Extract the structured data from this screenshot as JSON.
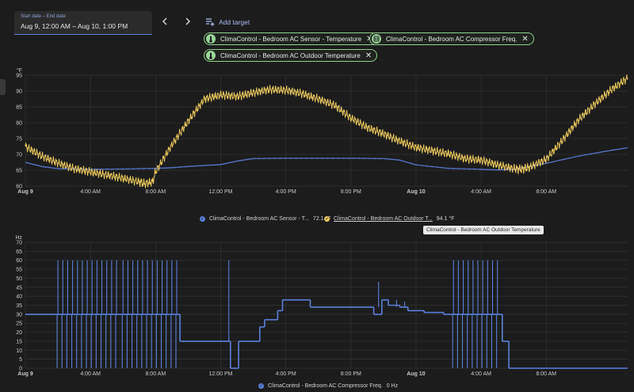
{
  "date_picker": {
    "label": "Start date – End date",
    "value": "Aug 9, 12:00 AM – Aug 10, 1:00 PM"
  },
  "nav": {
    "prev_icon": "chevron-left-icon",
    "next_icon": "chevron-right-icon"
  },
  "add_target": {
    "label": "Add target",
    "icon": "playlist-add-icon"
  },
  "targets": [
    {
      "label": "ClimaControl - Bedroom AC Sensor - Temperature",
      "icon": "thermometer-icon"
    },
    {
      "label": "ClimaControl - Bedroom AC Compressor Freq.",
      "icon": "fan-icon"
    },
    {
      "label": "ClimaControl - Bedroom AC Outdoor Temperature",
      "icon": "thermometer-icon"
    }
  ],
  "colors": {
    "sensor": "#5b7fd9",
    "outdoor": "#e8c65c",
    "compressor": "#5b7fd9",
    "chip_border": "#8fd08a"
  },
  "tooltip": "ClimaControl - Bedroom AC Outdoor Temperature",
  "chart_data": [
    {
      "type": "line",
      "ylabel": "°F",
      "ylim": [
        60,
        95
      ],
      "yticks": [
        60,
        65,
        70,
        75,
        80,
        85,
        90,
        95
      ],
      "xlim": [
        0,
        37
      ],
      "xticks": [
        {
          "t": 0,
          "label": "Aug 9",
          "bold": true
        },
        {
          "t": 4,
          "label": "4:00 AM"
        },
        {
          "t": 8,
          "label": "8:00 AM"
        },
        {
          "t": 12,
          "label": "12:00 PM"
        },
        {
          "t": 16,
          "label": "4:00 PM"
        },
        {
          "t": 20,
          "label": "8:00 PM"
        },
        {
          "t": 24,
          "label": "Aug 10",
          "bold": true
        },
        {
          "t": 28,
          "label": "4:00 AM"
        },
        {
          "t": 32,
          "label": "8:00 AM"
        }
      ],
      "series": [
        {
          "name": "ClimaControl - Bedroom AC Sensor - T...",
          "legend_value": "72.1 °F",
          "color": "#5b7fd9",
          "x": [
            0,
            1,
            2,
            4,
            6,
            8,
            9,
            10,
            11,
            12,
            13,
            14,
            16,
            18,
            20,
            22,
            23,
            24,
            26,
            28,
            29,
            30,
            31,
            32,
            34,
            36,
            37
          ],
          "y": [
            67.5,
            66.2,
            65.5,
            65.3,
            65.4,
            65.6,
            65.8,
            66.2,
            66.5,
            66.8,
            67.9,
            68.7,
            68.8,
            68.8,
            68.8,
            68.7,
            68.2,
            66.7,
            65.6,
            65.3,
            65.1,
            65.3,
            66.2,
            67.2,
            69.5,
            71.3,
            72.1
          ]
        },
        {
          "name": "ClimaControl - Bedroom AC Outdoor T...",
          "legend_value": "94.1 °F",
          "color": "#e8c65c",
          "x": [
            0,
            1,
            2,
            3,
            4,
            5,
            6,
            7,
            7.3,
            7.8,
            8,
            9,
            10,
            11,
            12,
            13,
            14,
            15,
            16,
            17,
            18,
            19,
            20,
            21,
            22,
            23,
            24,
            25,
            26,
            27,
            28,
            29,
            30,
            30.5,
            31,
            32,
            33,
            34,
            35,
            36,
            37
          ],
          "y": [
            72.5,
            69.5,
            67.3,
            65.5,
            64.5,
            63.5,
            62.5,
            61.3,
            60.8,
            61.2,
            64.5,
            73,
            80.5,
            87.5,
            88.8,
            88.3,
            89.5,
            90.5,
            90.3,
            89.2,
            87.5,
            85.5,
            81.5,
            78.5,
            76.5,
            74.2,
            72.2,
            71.2,
            70.2,
            68.7,
            68.2,
            66.7,
            65.5,
            65.3,
            66,
            68.5,
            74.5,
            81,
            86,
            90.5,
            94.1
          ]
        }
      ]
    },
    {
      "type": "line",
      "ylabel": "Hz",
      "ylim": [
        0,
        70
      ],
      "yticks": [
        0,
        5,
        10,
        15,
        20,
        25,
        30,
        35,
        40,
        45,
        50,
        55,
        60,
        65,
        70
      ],
      "xlim": [
        0,
        37
      ],
      "xticks": [
        {
          "t": 0,
          "label": "Aug 9",
          "bold": true
        },
        {
          "t": 4,
          "label": "4:00 AM"
        },
        {
          "t": 8,
          "label": "8:00 AM"
        },
        {
          "t": 12,
          "label": "12:00 PM"
        },
        {
          "t": 16,
          "label": "4:00 PM"
        },
        {
          "t": 20,
          "label": "8:00 PM"
        },
        {
          "t": 24,
          "label": "Aug 10",
          "bold": true
        },
        {
          "t": 28,
          "label": "4:00 AM"
        },
        {
          "t": 32,
          "label": "8:00 AM"
        }
      ],
      "base_segments": [
        {
          "t0": 0,
          "t1": 9.5,
          "v": 30
        },
        {
          "t0": 9.5,
          "t1": 12.6,
          "v": 15
        },
        {
          "t0": 12.6,
          "t1": 13.1,
          "v": 0
        },
        {
          "t0": 13.1,
          "t1": 14.4,
          "v": 15
        },
        {
          "t0": 14.4,
          "t1": 14.7,
          "v": 23
        },
        {
          "t0": 14.7,
          "t1": 15.5,
          "v": 27
        },
        {
          "t0": 15.5,
          "t1": 15.8,
          "v": 32
        },
        {
          "t0": 15.8,
          "t1": 17.5,
          "v": 38
        },
        {
          "t0": 17.5,
          "t1": 21.4,
          "v": 34
        },
        {
          "t0": 21.4,
          "t1": 21.9,
          "v": 30
        },
        {
          "t0": 21.9,
          "t1": 22.3,
          "v": 38
        },
        {
          "t0": 22.3,
          "t1": 23,
          "v": 35
        },
        {
          "t0": 23,
          "t1": 23.5,
          "v": 34
        },
        {
          "t0": 23.5,
          "t1": 24.5,
          "v": 32
        },
        {
          "t0": 24.5,
          "t1": 25.7,
          "v": 31
        },
        {
          "t0": 25.7,
          "t1": 29.3,
          "v": 30
        },
        {
          "t0": 29.3,
          "t1": 29.7,
          "v": 15
        },
        {
          "t0": 29.7,
          "t1": 37,
          "v": 0
        }
      ],
      "spikes_60": [
        2.0,
        2.3,
        2.6,
        2.9,
        3.2,
        3.5,
        3.8,
        4.1,
        4.4,
        4.7,
        5.0,
        5.3,
        5.6,
        6.0,
        6.3,
        6.6,
        6.9,
        7.2,
        7.5,
        7.8,
        8.1,
        8.4,
        8.7,
        9.0,
        9.3,
        12.5,
        26.3,
        26.6,
        26.9,
        27.2,
        27.5,
        27.8,
        28.1,
        28.4,
        28.7,
        29.0
      ],
      "dips_0": [
        1.95,
        2.25,
        2.55,
        2.85,
        3.15,
        3.45,
        3.75,
        4.05,
        4.35,
        4.65,
        4.95,
        5.25,
        5.55,
        5.95,
        6.25,
        6.55,
        6.85,
        7.15,
        7.45,
        7.75,
        8.05,
        8.35,
        8.65,
        8.95,
        9.25,
        26.25,
        26.55,
        26.85,
        27.15,
        27.45,
        27.75,
        28.05,
        28.35,
        28.65,
        28.95
      ],
      "extra_spikes": [
        {
          "t": 21.7,
          "v": 48
        },
        {
          "t": 22.8,
          "v": 38
        },
        {
          "t": 23.3,
          "v": 37
        }
      ],
      "series": [
        {
          "name": "ClimaControl - Bedroom AC Compressor Freq.",
          "legend_value": "0 Hz",
          "color": "#5b7fd9"
        }
      ]
    }
  ]
}
